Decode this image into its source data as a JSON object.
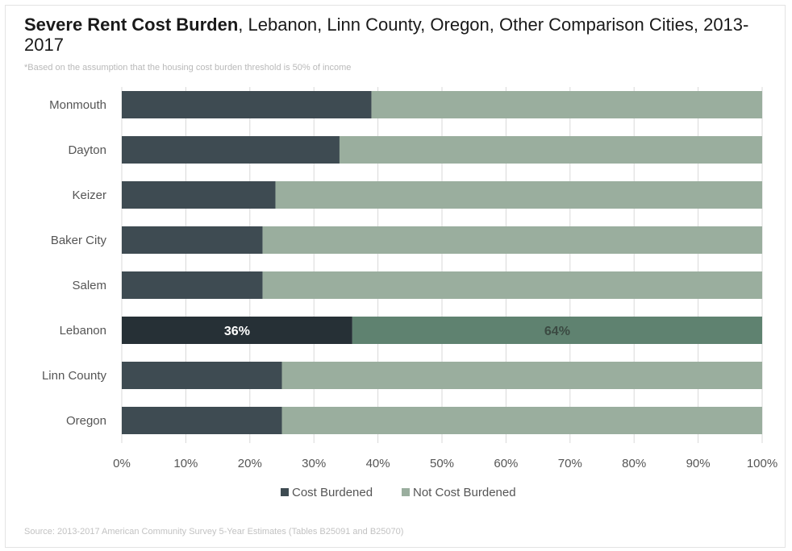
{
  "header": {
    "title_bold": "Severe Rent Cost Burden",
    "title_rest": ", Lebanon, Linn County, Oregon, Other Comparison Cities, 2013-2017",
    "note": "*Based on the assumption that the housing cost burden threshold is 50% of income"
  },
  "footer": {
    "source": "Source: 2013-2017 American Community Survey 5-Year Estimates (Tables B25091 and B25070)"
  },
  "colors": {
    "cost_burdened": "#3e4b52",
    "not_cost_burdened": "#9aae9e",
    "highlight_cost_burdened": "#263036",
    "highlight_not_cost_burdened": "#5f8270",
    "gridline": "#d9d9d9"
  },
  "chart_data": {
    "type": "bar",
    "orientation": "horizontal",
    "stacked": true,
    "categories": [
      "Monmouth",
      "Dayton",
      "Keizer",
      "Baker City",
      "Salem",
      "Lebanon",
      "Linn County",
      "Oregon"
    ],
    "series": [
      {
        "name": "Cost Burdened",
        "values": [
          39,
          34,
          24,
          22,
          22,
          36,
          25,
          25
        ]
      },
      {
        "name": "Not Cost Burdened",
        "values": [
          61,
          66,
          76,
          78,
          78,
          64,
          75,
          75
        ]
      }
    ],
    "highlight_category": "Lebanon",
    "data_labels": {
      "Lebanon": [
        "36%",
        "64%"
      ]
    },
    "xlim": [
      0,
      100
    ],
    "xticks": [
      "0%",
      "10%",
      "20%",
      "30%",
      "40%",
      "50%",
      "60%",
      "70%",
      "80%",
      "90%",
      "100%"
    ],
    "grid": true,
    "legend_position": "bottom"
  }
}
